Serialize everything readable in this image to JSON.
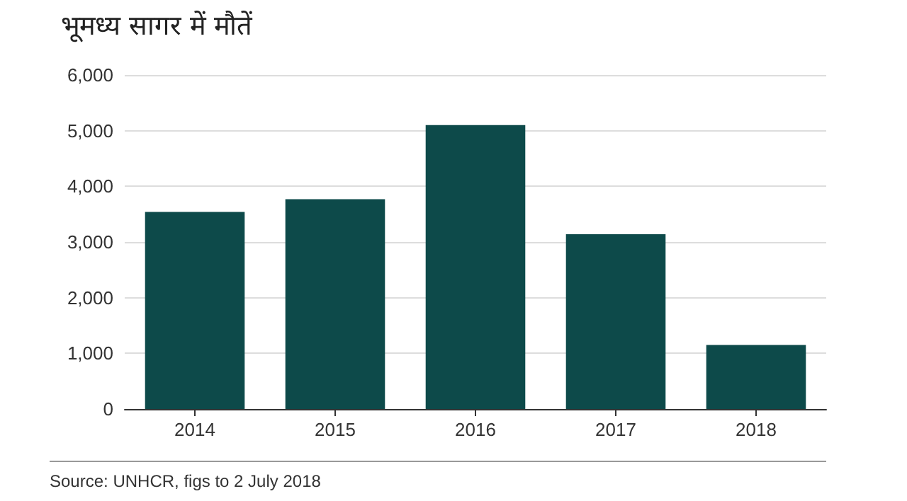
{
  "chart_data": {
    "type": "bar",
    "title": "भूमध्य सागर में मौतें",
    "categories": [
      "2014",
      "2015",
      "2016",
      "2017",
      "2018"
    ],
    "values": [
      3540,
      3770,
      5100,
      3140,
      1150
    ],
    "color": "#0d4a4a",
    "ylim": [
      0,
      6000
    ],
    "yticks": [
      0,
      {
        "value": 1000,
        "label": "1,000"
      },
      {
        "value": 2000,
        "label": "2,000"
      },
      {
        "value": 3000,
        "label": "3,000"
      },
      {
        "value": 4000,
        "label": "4,000"
      },
      {
        "value": 5000,
        "label": "5,000"
      },
      {
        "value": 6000,
        "label": "6,000"
      }
    ],
    "grid": "y",
    "annotations": [
      "Source: UNHCR, figs to 2 July 2018"
    ]
  }
}
